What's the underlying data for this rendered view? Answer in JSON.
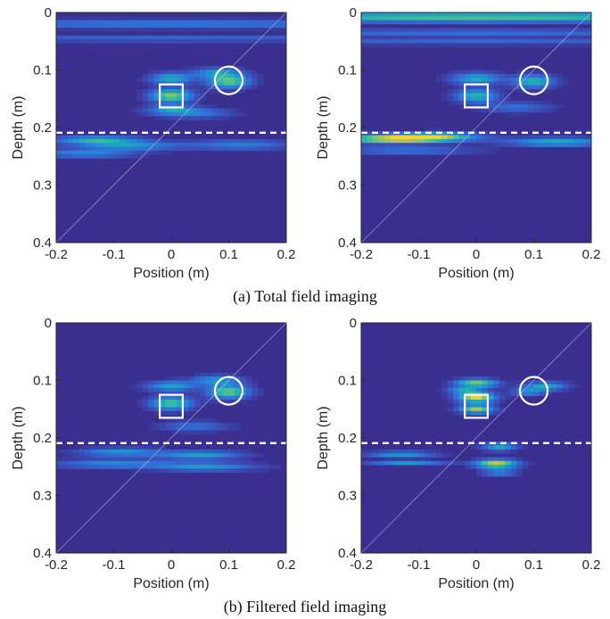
{
  "figure": {
    "captions": [
      "(a) Total field imaging",
      "(b) Filtered field imaging"
    ]
  },
  "colors": {
    "background": "#3a2f8f",
    "colormap": [
      "#3a2f8f",
      "#3b4fb8",
      "#3070d8",
      "#1f93d0",
      "#22b2b0",
      "#58c48a",
      "#b8c34c",
      "#f4d62a"
    ],
    "overlay": "#ffffff"
  },
  "chart_data": [
    {
      "type": "heatmap",
      "panel": "top-left",
      "xlabel": "Position (m)",
      "ylabel": "Depth (m)",
      "xlim": [
        -0.2,
        0.2
      ],
      "ylim": [
        0,
        0.4
      ],
      "y_reversed": true,
      "xticks": [
        "-0.2",
        "-0.1",
        "0",
        "0.1",
        "0.2"
      ],
      "yticks": [
        "0",
        "0.1",
        "0.2",
        "0.3",
        "0.4"
      ],
      "interface_depth": 0.209,
      "square_target": {
        "x0": -0.02,
        "x1": 0.02,
        "y0": 0.125,
        "y1": 0.165
      },
      "circle_target": {
        "cx": 0.1,
        "cy": 0.118,
        "r": 0.024
      },
      "blobs": [
        {
          "x": 0.0,
          "y": 0.02,
          "sx": 0.35,
          "sy": 0.005,
          "v": 0.35
        },
        {
          "x": 0.0,
          "y": 0.045,
          "sx": 0.35,
          "sy": 0.004,
          "v": 0.25
        },
        {
          "x": 0.0,
          "y": 0.115,
          "sx": 0.025,
          "sy": 0.007,
          "v": 0.55
        },
        {
          "x": 0.0,
          "y": 0.145,
          "sx": 0.025,
          "sy": 0.008,
          "v": 0.8
        },
        {
          "x": 0.0,
          "y": 0.17,
          "sx": 0.03,
          "sy": 0.006,
          "v": 0.45
        },
        {
          "x": 0.1,
          "y": 0.12,
          "sx": 0.025,
          "sy": 0.008,
          "v": 0.75
        },
        {
          "x": 0.08,
          "y": 0.105,
          "sx": 0.03,
          "sy": 0.006,
          "v": 0.45
        },
        {
          "x": 0.05,
          "y": 0.175,
          "sx": 0.04,
          "sy": 0.006,
          "v": 0.3
        },
        {
          "x": -0.13,
          "y": 0.222,
          "sx": 0.05,
          "sy": 0.005,
          "v": 0.6
        },
        {
          "x": -0.07,
          "y": 0.232,
          "sx": 0.06,
          "sy": 0.005,
          "v": 0.45
        },
        {
          "x": -0.15,
          "y": 0.245,
          "sx": 0.06,
          "sy": 0.005,
          "v": 0.4
        },
        {
          "x": 0.12,
          "y": 0.23,
          "sx": 0.06,
          "sy": 0.006,
          "v": 0.35
        }
      ]
    },
    {
      "type": "heatmap",
      "panel": "top-right",
      "xlabel": "Position (m)",
      "ylabel": "Depth (m)",
      "xlim": [
        -0.2,
        0.2
      ],
      "ylim": [
        0,
        0.4
      ],
      "y_reversed": true,
      "xticks": [
        "-0.2",
        "-0.1",
        "0",
        "0.1",
        "0.2"
      ],
      "yticks": [
        "0",
        "0.1",
        "0.2",
        "0.3",
        "0.4"
      ],
      "interface_depth": 0.209,
      "square_target": {
        "x0": -0.02,
        "x1": 0.02,
        "y0": 0.125,
        "y1": 0.165
      },
      "circle_target": {
        "cx": 0.1,
        "cy": 0.118,
        "r": 0.024
      },
      "blobs": [
        {
          "x": 0.0,
          "y": 0.008,
          "sx": 0.4,
          "sy": 0.006,
          "v": 0.7
        },
        {
          "x": 0.0,
          "y": 0.035,
          "sx": 0.35,
          "sy": 0.004,
          "v": 0.3
        },
        {
          "x": 0.0,
          "y": 0.05,
          "sx": 0.35,
          "sy": 0.004,
          "v": 0.25
        },
        {
          "x": 0.0,
          "y": 0.115,
          "sx": 0.03,
          "sy": 0.007,
          "v": 0.55
        },
        {
          "x": 0.0,
          "y": 0.145,
          "sx": 0.025,
          "sy": 0.008,
          "v": 0.6
        },
        {
          "x": 0.1,
          "y": 0.12,
          "sx": 0.025,
          "sy": 0.008,
          "v": 0.6
        },
        {
          "x": 0.07,
          "y": 0.165,
          "sx": 0.04,
          "sy": 0.006,
          "v": 0.3
        },
        {
          "x": -0.14,
          "y": 0.22,
          "sx": 0.07,
          "sy": 0.005,
          "v": 1.0
        },
        {
          "x": -0.07,
          "y": 0.215,
          "sx": 0.05,
          "sy": 0.005,
          "v": 0.6
        },
        {
          "x": 0.14,
          "y": 0.225,
          "sx": 0.06,
          "sy": 0.005,
          "v": 0.55
        },
        {
          "x": -0.12,
          "y": 0.24,
          "sx": 0.08,
          "sy": 0.004,
          "v": 0.35
        }
      ]
    },
    {
      "type": "heatmap",
      "panel": "bottom-left",
      "xlabel": "Position (m)",
      "ylabel": "Depth (m)",
      "xlim": [
        -0.2,
        0.2
      ],
      "ylim": [
        0,
        0.4
      ],
      "y_reversed": true,
      "xticks": [
        "-0.2",
        "-0.1",
        "0",
        "0.1",
        "0.2"
      ],
      "yticks": [
        "0",
        "0.1",
        "0.2",
        "0.3",
        "0.4"
      ],
      "interface_depth": 0.209,
      "square_target": {
        "x0": -0.02,
        "x1": 0.02,
        "y0": 0.125,
        "y1": 0.165
      },
      "circle_target": {
        "cx": 0.1,
        "cy": 0.118,
        "r": 0.024
      },
      "blobs": [
        {
          "x": 0.0,
          "y": 0.11,
          "sx": 0.03,
          "sy": 0.006,
          "v": 0.5
        },
        {
          "x": 0.0,
          "y": 0.14,
          "sx": 0.025,
          "sy": 0.008,
          "v": 0.7
        },
        {
          "x": 0.1,
          "y": 0.12,
          "sx": 0.025,
          "sy": 0.008,
          "v": 0.75
        },
        {
          "x": 0.08,
          "y": 0.1,
          "sx": 0.03,
          "sy": 0.006,
          "v": 0.45
        },
        {
          "x": 0.04,
          "y": 0.18,
          "sx": 0.04,
          "sy": 0.006,
          "v": 0.3
        },
        {
          "x": -0.09,
          "y": 0.225,
          "sx": 0.05,
          "sy": 0.005,
          "v": 0.45
        },
        {
          "x": 0.05,
          "y": 0.23,
          "sx": 0.05,
          "sy": 0.005,
          "v": 0.5
        },
        {
          "x": -0.1,
          "y": 0.245,
          "sx": 0.07,
          "sy": 0.005,
          "v": 0.4
        },
        {
          "x": 0.06,
          "y": 0.25,
          "sx": 0.06,
          "sy": 0.005,
          "v": 0.45
        }
      ]
    },
    {
      "type": "heatmap",
      "panel": "bottom-right",
      "xlabel": "Position (m)",
      "ylabel": "Depth (m)",
      "xlim": [
        -0.2,
        0.2
      ],
      "ylim": [
        0,
        0.4
      ],
      "y_reversed": true,
      "xticks": [
        "-0.2",
        "-0.1",
        "0",
        "0.1",
        "0.2"
      ],
      "yticks": [
        "0",
        "0.1",
        "0.2",
        "0.3",
        "0.4"
      ],
      "interface_depth": 0.209,
      "square_target": {
        "x0": -0.02,
        "x1": 0.02,
        "y0": 0.125,
        "y1": 0.165
      },
      "circle_target": {
        "cx": 0.1,
        "cy": 0.118,
        "r": 0.024
      },
      "blobs": [
        {
          "x": 0.0,
          "y": 0.105,
          "sx": 0.025,
          "sy": 0.005,
          "v": 0.8
        },
        {
          "x": 0.0,
          "y": 0.13,
          "sx": 0.022,
          "sy": 0.006,
          "v": 1.0
        },
        {
          "x": 0.0,
          "y": 0.15,
          "sx": 0.02,
          "sy": 0.005,
          "v": 0.85
        },
        {
          "x": -0.02,
          "y": 0.118,
          "sx": 0.02,
          "sy": 0.004,
          "v": 0.5
        },
        {
          "x": 0.12,
          "y": 0.11,
          "sx": 0.025,
          "sy": 0.005,
          "v": 0.55
        },
        {
          "x": 0.09,
          "y": 0.12,
          "sx": 0.02,
          "sy": 0.004,
          "v": 0.45
        },
        {
          "x": 0.04,
          "y": 0.215,
          "sx": 0.02,
          "sy": 0.005,
          "v": 0.55
        },
        {
          "x": 0.035,
          "y": 0.245,
          "sx": 0.025,
          "sy": 0.005,
          "v": 0.95
        },
        {
          "x": 0.04,
          "y": 0.26,
          "sx": 0.02,
          "sy": 0.004,
          "v": 0.4
        },
        {
          "x": -0.13,
          "y": 0.228,
          "sx": 0.04,
          "sy": 0.003,
          "v": 0.55
        },
        {
          "x": -0.12,
          "y": 0.243,
          "sx": 0.045,
          "sy": 0.003,
          "v": 0.45
        }
      ]
    }
  ]
}
